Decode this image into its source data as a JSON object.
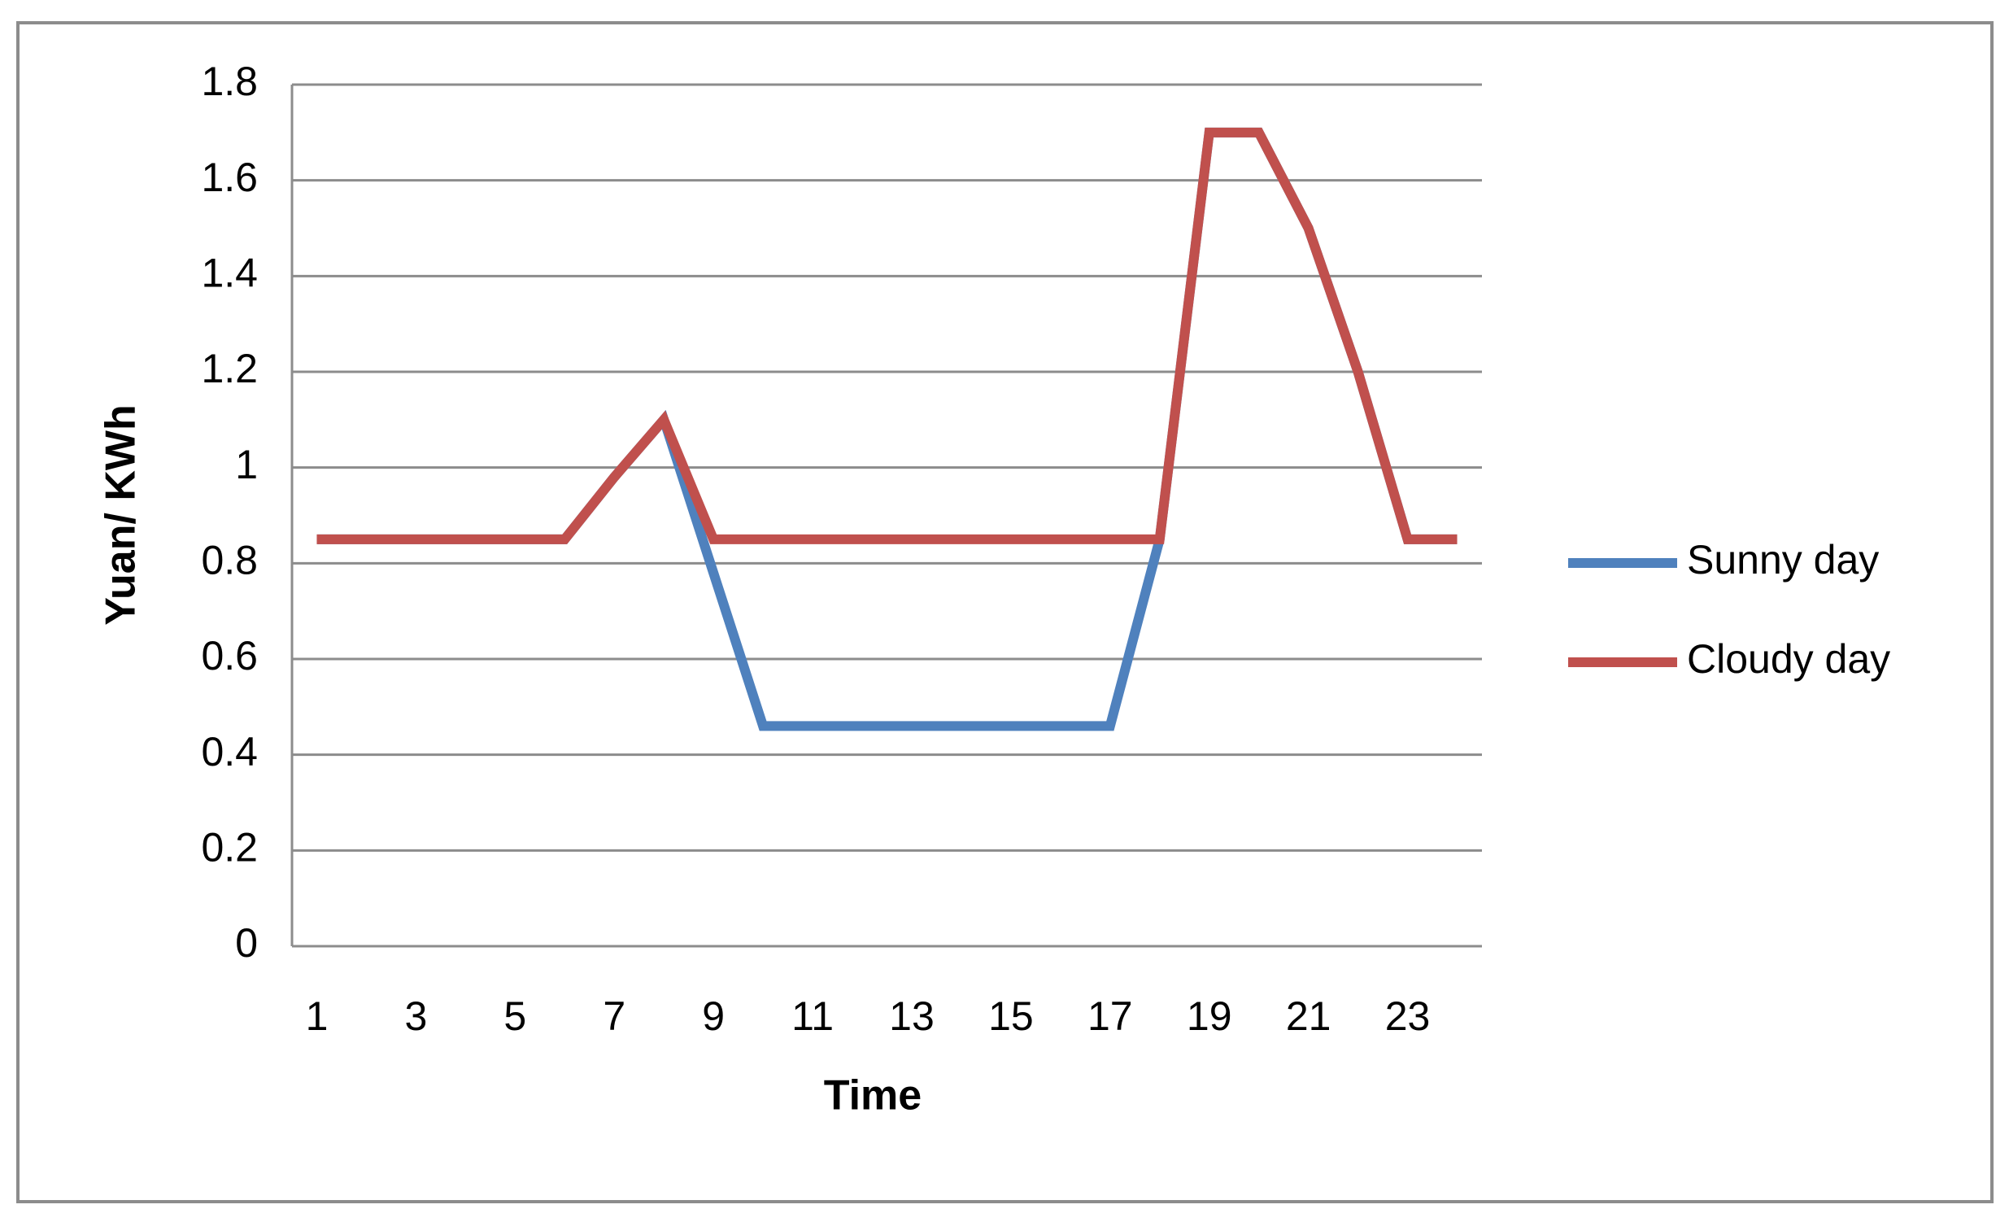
{
  "chart_data": {
    "type": "line",
    "xlabel": "Time",
    "ylabel": "Yuan/ KWh",
    "categories": [
      "1",
      null,
      "3",
      null,
      "5",
      null,
      "7",
      null,
      "9",
      null,
      "11",
      null,
      "13",
      null,
      "15",
      null,
      "17",
      null,
      "19",
      null,
      "21",
      null,
      "23",
      null
    ],
    "series": [
      {
        "name": "Sunny day",
        "color": "#4f81bd",
        "values": [
          0.85,
          0.85,
          0.85,
          0.85,
          0.85,
          0.85,
          0.98,
          1.1,
          0.78,
          0.46,
          0.46,
          0.46,
          0.46,
          0.46,
          0.46,
          0.46,
          0.46,
          0.85,
          1.7,
          1.7,
          1.5,
          1.2,
          0.85,
          0.85
        ]
      },
      {
        "name": "Cloudy day",
        "color": "#c0504d",
        "values": [
          0.85,
          0.85,
          0.85,
          0.85,
          0.85,
          0.85,
          0.98,
          1.1,
          0.85,
          0.85,
          0.85,
          0.85,
          0.85,
          0.85,
          0.85,
          0.85,
          0.85,
          0.85,
          1.7,
          1.7,
          1.5,
          1.2,
          0.85,
          0.85
        ]
      }
    ],
    "ylim": [
      0,
      1.8
    ],
    "yticks": [
      0,
      0.2,
      0.4,
      0.6,
      0.8,
      1,
      1.2,
      1.4,
      1.6,
      1.8
    ],
    "grid": true,
    "legend": "right"
  }
}
